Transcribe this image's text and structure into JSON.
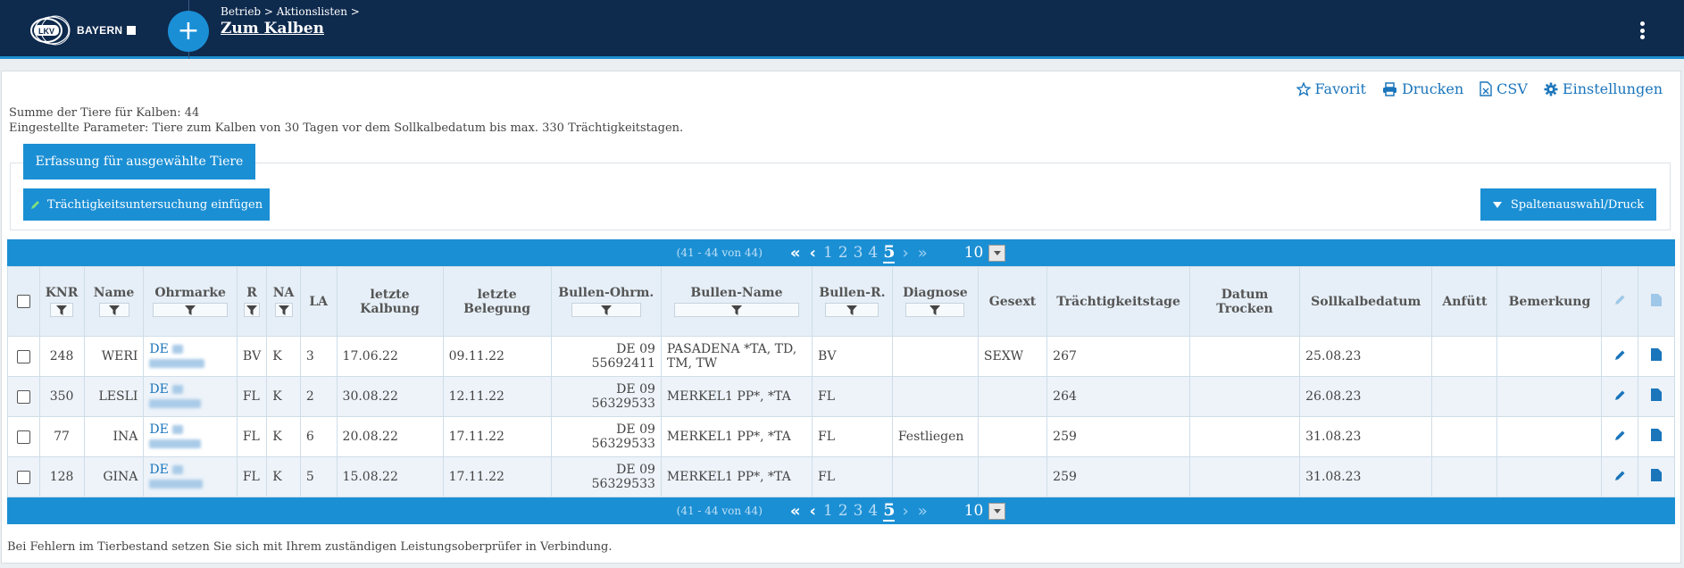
{
  "header": {
    "logo_text": "BAYERN",
    "logo_mark": "LKV",
    "breadcrumb": "Betrieb > Aktionslisten >",
    "title": "Zum Kalben",
    "accent": "#1d8fd0",
    "bg": "#0e2a4d"
  },
  "toolbar": {
    "favorit": "Favorit",
    "drucken": "Drucken",
    "csv": "CSV",
    "einstellungen": "Einstellungen"
  },
  "summary": {
    "line1": "Summe der Tiere für Kalben: 44",
    "line2": "Eingestellte Parameter: Tiere zum Kalben von 30 Tagen vor dem Sollkalbedatum bis max. 330 Trächtigkeitstagen."
  },
  "actions": {
    "erfassung": "Erfassung für ausgewählte Tiere",
    "traechtigkeit": "Trächtigkeitsuntersuchung einfügen",
    "spalten": "Spaltenauswahl/Druck"
  },
  "pager": {
    "range": "(41 - 44 von 44)",
    "pages": [
      "1",
      "2",
      "3",
      "4",
      "5"
    ],
    "active_page": "5",
    "page_size": "10"
  },
  "table": {
    "columns": {
      "knr": "KNR",
      "name": "Name",
      "ohrmarke": "Ohrmarke",
      "r": "R",
      "na": "NA",
      "la": "LA",
      "letzte_kalbung": "letzte Kalbung",
      "letzte_belegung": "letzte Belegung",
      "bullen_ohrm": "Bullen-Ohrm.",
      "bullen_name": "Bullen-Name",
      "bullen_r": "Bullen-R.",
      "diagnose": "Diagnose",
      "gesext": "Gesext",
      "traechtigkeitstage": "Trächtigkeitstage",
      "datum_trocken": "Datum Trocken",
      "sollkalbedatum": "Sollkalbedatum",
      "anfuett": "Anfütt",
      "bemerkung": "Bemerkung"
    },
    "rows": [
      {
        "knr": "248",
        "name": "WERI",
        "ohrmarke": "DE",
        "r": "BV",
        "na": "K",
        "la": "3",
        "kalbung": "17.06.22",
        "belegung": "09.11.22",
        "bohrm1": "DE 09",
        "bohrm2": "55692411",
        "bname": "PASADENA *TA, TD, TM, TW",
        "br": "BV",
        "diagnose": "",
        "gesext": "SEXW",
        "ttage": "267",
        "trocken": "",
        "soll": "25.08.23",
        "anfuett": "",
        "bemerkung": ""
      },
      {
        "knr": "350",
        "name": "LESLI",
        "ohrmarke": "DE",
        "r": "FL",
        "na": "K",
        "la": "2",
        "kalbung": "30.08.22",
        "belegung": "12.11.22",
        "bohrm1": "DE 09",
        "bohrm2": "56329533",
        "bname": "MERKEL1 PP*, *TA",
        "br": "FL",
        "diagnose": "",
        "gesext": "",
        "ttage": "264",
        "trocken": "",
        "soll": "26.08.23",
        "anfuett": "",
        "bemerkung": ""
      },
      {
        "knr": "77",
        "name": "INA",
        "ohrmarke": "DE",
        "r": "FL",
        "na": "K",
        "la": "6",
        "kalbung": "20.08.22",
        "belegung": "17.11.22",
        "bohrm1": "DE 09",
        "bohrm2": "56329533",
        "bname": "MERKEL1 PP*, *TA",
        "br": "FL",
        "diagnose": "Festliegen",
        "gesext": "",
        "ttage": "259",
        "trocken": "",
        "soll": "31.08.23",
        "anfuett": "",
        "bemerkung": ""
      },
      {
        "knr": "128",
        "name": "GINA",
        "ohrmarke": "DE",
        "r": "FL",
        "na": "K",
        "la": "5",
        "kalbung": "15.08.22",
        "belegung": "17.11.22",
        "bohrm1": "DE 09",
        "bohrm2": "56329533",
        "bname": "MERKEL1 PP*, *TA",
        "br": "FL",
        "diagnose": "",
        "gesext": "",
        "ttage": "259",
        "trocken": "",
        "soll": "31.08.23",
        "anfuett": "",
        "bemerkung": ""
      }
    ]
  },
  "footer": "Bei Fehlern im Tierbestand setzen Sie sich mit Ihrem zuständigen Leistungsoberprüfer in Verbindung."
}
